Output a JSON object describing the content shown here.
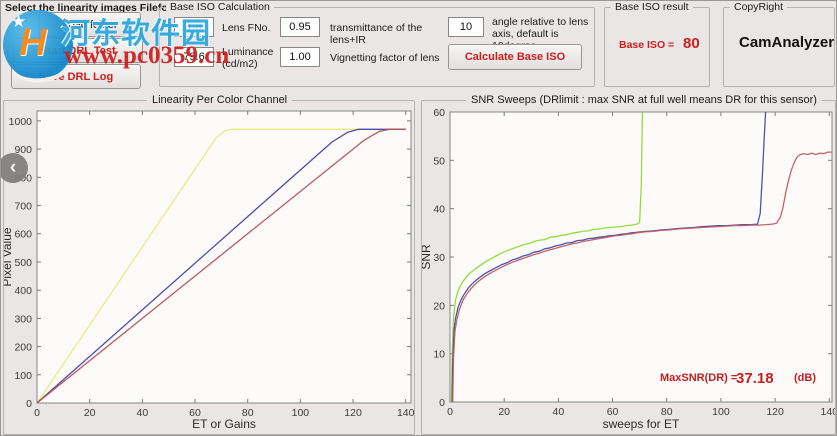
{
  "watermark": {
    "site_name": "河东软件园",
    "site_url": "www.pc0359.cn",
    "star": "★",
    "logo_letter": "H"
  },
  "nav": {
    "back_glyph": "‹"
  },
  "header": {
    "select_label": "Select the linearity images Filefolder",
    "load_button": "Load folder",
    "start_button": "Start DRL Test",
    "save_button": "Save DRL Log"
  },
  "base_iso": {
    "title": "Base ISO Calculation",
    "lens_fno": {
      "value": "1.8",
      "label": "Lens FNo."
    },
    "transmittance": {
      "value": "0.95",
      "label": "transmittance of the lens+IR"
    },
    "angle": {
      "value": "10",
      "label": "angle relative to lens axis, default is 10degree"
    },
    "luminance": {
      "value": "79.6",
      "label": "Luminance(cd/m2)"
    },
    "vignetting": {
      "value": "1.00",
      "label": "Vignetting factor of lens"
    },
    "calculate_button": "Calculate Base ISO"
  },
  "result": {
    "title": "Base ISO result",
    "label": "Base ISO =",
    "value": "80"
  },
  "copyright": {
    "title": "CopyRight",
    "text": "CamAnalyzer"
  },
  "chart_data": [
    {
      "type": "line",
      "title": "Linearity Per Color Channel",
      "xlabel": "ET or Gains",
      "ylabel": "Pixel Value",
      "xlim": [
        0,
        142
      ],
      "ylim": [
        0,
        1035
      ],
      "xticks": [
        0,
        20,
        40,
        60,
        80,
        100,
        120,
        140
      ],
      "yticks": [
        0,
        100,
        200,
        300,
        400,
        500,
        600,
        700,
        800,
        900,
        1000
      ],
      "grid": false,
      "legend": "none",
      "series": [
        {
          "name": "yellow-channel",
          "color": "#e9e97c",
          "points": [
            [
              0,
              0
            ],
            [
              68,
              940
            ],
            [
              71,
              963
            ],
            [
              74,
              970
            ],
            [
              140,
              970
            ]
          ]
        },
        {
          "name": "blue-channel",
          "color": "#4343a5",
          "points": [
            [
              0,
              0
            ],
            [
              112,
              925
            ],
            [
              118,
              960
            ],
            [
              122,
              970
            ],
            [
              140,
              970
            ]
          ]
        },
        {
          "name": "red-channel",
          "color": "#b65252",
          "points": [
            [
              0,
              0
            ],
            [
              124,
              930
            ],
            [
              130,
              963
            ],
            [
              134,
              970
            ],
            [
              140,
              970
            ]
          ]
        }
      ]
    },
    {
      "type": "line",
      "title": "SNR Sweeps (DRlimit :  max SNR at full well means DR for this sensor)",
      "xlabel": "sweeps for ET",
      "ylabel": "SNR",
      "xlim": [
        0,
        141
      ],
      "ylim": [
        0,
        60
      ],
      "xticks": [
        0,
        20,
        40,
        60,
        80,
        100,
        120,
        140
      ],
      "yticks": [
        0,
        10,
        20,
        30,
        40,
        50,
        60
      ],
      "grid": false,
      "legend": "none",
      "annotation": {
        "label": "MaxSNR(DR) = ",
        "value": "37.18",
        "unit": "(dB)"
      },
      "series": [
        {
          "name": "green-sweep",
          "color": "#8ade2e",
          "points": [
            [
              0.5,
              0
            ],
            [
              0.8,
              10
            ],
            [
              1.2,
              17
            ],
            [
              2,
              21
            ],
            [
              3,
              23
            ],
            [
              4,
              24.2
            ],
            [
              5,
              25.1
            ],
            [
              7,
              26.5
            ],
            [
              9,
              27.4
            ],
            [
              11,
              28.2
            ],
            [
              13,
              29
            ],
            [
              15,
              29.6
            ],
            [
              17,
              30.2
            ],
            [
              19,
              30.8
            ],
            [
              21,
              31.3
            ],
            [
              23,
              31.7
            ],
            [
              25,
              32.1
            ],
            [
              27,
              32.5
            ],
            [
              29,
              32.8
            ],
            [
              31,
              33.2
            ],
            [
              33,
              33.5
            ],
            [
              35,
              33.6
            ],
            [
              37,
              34.1
            ],
            [
              39,
              34.2
            ],
            [
              41,
              34.5
            ],
            [
              43,
              34.6
            ],
            [
              45,
              34.9
            ],
            [
              47,
              35.1
            ],
            [
              49,
              35.3
            ],
            [
              51,
              35.4
            ],
            [
              53,
              35.7
            ],
            [
              55,
              35.8
            ],
            [
              57,
              36.0
            ],
            [
              59,
              36.1
            ],
            [
              61,
              36.2
            ],
            [
              63,
              36.3
            ],
            [
              65,
              36.5
            ],
            [
              67,
              36.6
            ],
            [
              69,
              36.8
            ],
            [
              70,
              37.1
            ],
            [
              70.6,
              45
            ],
            [
              71,
              60
            ]
          ]
        },
        {
          "name": "blue-sweep",
          "color": "#4747ab",
          "points": [
            [
              0.8,
              0
            ],
            [
              1,
              8
            ],
            [
              1.5,
              15
            ],
            [
              2,
              17.2
            ],
            [
              3,
              19.6
            ],
            [
              4,
              21
            ],
            [
              5,
              22.1
            ],
            [
              7,
              23.8
            ],
            [
              9,
              24.9
            ],
            [
              11,
              25.8
            ],
            [
              13,
              26.6
            ],
            [
              15,
              27.2
            ],
            [
              17,
              27.8
            ],
            [
              19,
              28.4
            ],
            [
              21,
              28.8
            ],
            [
              23,
              29.4
            ],
            [
              25,
              29.7
            ],
            [
              27,
              30.2
            ],
            [
              29,
              30.5
            ],
            [
              31,
              31.0
            ],
            [
              33,
              31.2
            ],
            [
              35,
              31.7
            ],
            [
              37,
              31.9
            ],
            [
              39,
              32.3
            ],
            [
              41,
              32.5
            ],
            [
              43,
              32.9
            ],
            [
              45,
              33.0
            ],
            [
              47,
              33.4
            ],
            [
              49,
              33.5
            ],
            [
              51,
              33.8
            ],
            [
              53,
              33.9
            ],
            [
              55,
              34.1
            ],
            [
              57,
              34.2
            ],
            [
              59,
              34.4
            ],
            [
              61,
              34.5
            ],
            [
              63,
              34.7
            ],
            [
              65,
              34.8
            ],
            [
              67,
              35.0
            ],
            [
              69,
              35.1
            ],
            [
              72,
              35.3
            ],
            [
              75,
              35.4
            ],
            [
              78,
              35.6
            ],
            [
              81,
              35.7
            ],
            [
              84,
              35.9
            ],
            [
              87,
              36.0
            ],
            [
              90,
              36.1
            ],
            [
              93,
              36.3
            ],
            [
              96,
              36.4
            ],
            [
              99,
              36.5
            ],
            [
              102,
              36.5
            ],
            [
              105,
              36.6
            ],
            [
              108,
              36.7
            ],
            [
              111,
              36.7
            ],
            [
              113.5,
              36.8
            ],
            [
              114.5,
              39
            ],
            [
              115.3,
              47
            ],
            [
              116,
              55
            ],
            [
              116.5,
              60
            ]
          ]
        },
        {
          "name": "red-sweep",
          "color": "#c25b5b",
          "points": [
            [
              1,
              0
            ],
            [
              1.3,
              9
            ],
            [
              1.8,
              14.5
            ],
            [
              2.5,
              17
            ],
            [
              3.5,
              19.2
            ],
            [
              5,
              21.3
            ],
            [
              7,
              23.0
            ],
            [
              9,
              24.2
            ],
            [
              11,
              25.2
            ],
            [
              13,
              26.0
            ],
            [
              15,
              26.7
            ],
            [
              17,
              27.3
            ],
            [
              19,
              27.9
            ],
            [
              21,
              28.4
            ],
            [
              23,
              28.9
            ],
            [
              25,
              29.3
            ],
            [
              27,
              29.7
            ],
            [
              29,
              30.1
            ],
            [
              31,
              30.5
            ],
            [
              33,
              30.8
            ],
            [
              35,
              31.2
            ],
            [
              37,
              31.5
            ],
            [
              39,
              31.8
            ],
            [
              41,
              32.1
            ],
            [
              43,
              32.4
            ],
            [
              45,
              32.7
            ],
            [
              47,
              32.9
            ],
            [
              49,
              33.2
            ],
            [
              51,
              33.4
            ],
            [
              53,
              33.6
            ],
            [
              55,
              33.8
            ],
            [
              57,
              34.0
            ],
            [
              59,
              34.2
            ],
            [
              61,
              34.4
            ],
            [
              63,
              34.5
            ],
            [
              65,
              34.7
            ],
            [
              67,
              34.8
            ],
            [
              69,
              35.0
            ],
            [
              72,
              35.2
            ],
            [
              75,
              35.3
            ],
            [
              78,
              35.5
            ],
            [
              81,
              35.6
            ],
            [
              84,
              35.8
            ],
            [
              87,
              35.9
            ],
            [
              90,
              36.0
            ],
            [
              93,
              36.1
            ],
            [
              96,
              36.2
            ],
            [
              99,
              36.3
            ],
            [
              102,
              36.4
            ],
            [
              105,
              36.5
            ],
            [
              108,
              36.5
            ],
            [
              111,
              36.6
            ],
            [
              114,
              36.6
            ],
            [
              117,
              36.7
            ],
            [
              119,
              36.8
            ],
            [
              120.5,
              37.0
            ],
            [
              122,
              38.3
            ],
            [
              123,
              40.5
            ],
            [
              124,
              43.5
            ],
            [
              125,
              46
            ],
            [
              126,
              48
            ],
            [
              127,
              49.5
            ],
            [
              128,
              50.6
            ],
            [
              129,
              51.1
            ],
            [
              130.5,
              51.4
            ],
            [
              132,
              51.2
            ],
            [
              133.5,
              51.5
            ],
            [
              135,
              51.2
            ],
            [
              136.5,
              51.5
            ],
            [
              138,
              51.4
            ],
            [
              139.5,
              51.7
            ],
            [
              141,
              51.7
            ]
          ]
        }
      ]
    }
  ]
}
